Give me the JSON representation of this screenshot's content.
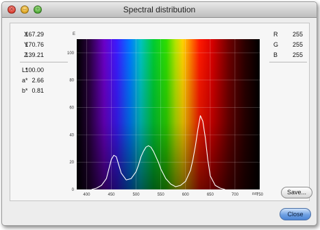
{
  "window": {
    "title": "Spectral distribution"
  },
  "traffic_lights": {
    "close_glyph": "×",
    "minimize_glyph": "–",
    "zoom_glyph": "+"
  },
  "xyz": [
    {
      "label": "X",
      "value": "167.29"
    },
    {
      "label": "Y",
      "value": "170.76"
    },
    {
      "label": "Z",
      "value": "139.21"
    }
  ],
  "lab": [
    {
      "label": "L*",
      "value": "100.00"
    },
    {
      "label": "a*",
      "value": "2.66"
    },
    {
      "label": "b*",
      "value": "0.81"
    }
  ],
  "rgb": [
    {
      "label": "R",
      "value": "255"
    },
    {
      "label": "G",
      "value": "255"
    },
    {
      "label": "B",
      "value": "255"
    }
  ],
  "buttons": {
    "save": "Save...",
    "close": "Close"
  },
  "chart_data": {
    "type": "line",
    "title": "",
    "ylabel": "E",
    "xlabel": "",
    "x_unit": "nm",
    "xlim": [
      380,
      750
    ],
    "ylim": [
      0,
      110
    ],
    "x_ticks": [
      400,
      450,
      500,
      550,
      600,
      650,
      700,
      750
    ],
    "y_ticks": [
      0,
      20,
      40,
      60,
      80,
      100
    ],
    "grid": true,
    "background": "visible spectrum",
    "series": [
      {
        "color": "#ffffff",
        "x": [
          410,
          420,
          430,
          440,
          445,
          450,
          455,
          460,
          465,
          470,
          480,
          490,
          500,
          505,
          510,
          515,
          520,
          525,
          530,
          535,
          540,
          545,
          550,
          560,
          570,
          580,
          590,
          600,
          610,
          615,
          620,
          625,
          630,
          635,
          640,
          645,
          650,
          660,
          670,
          680
        ],
        "y": [
          0,
          1,
          3,
          8,
          15,
          22,
          25,
          24,
          18,
          12,
          7,
          8,
          13,
          18,
          24,
          28,
          31,
          32,
          31,
          28,
          24,
          20,
          15,
          8,
          4,
          2,
          3,
          6,
          14,
          22,
          32,
          44,
          54,
          50,
          38,
          22,
          10,
          3,
          1,
          0
        ]
      }
    ]
  }
}
